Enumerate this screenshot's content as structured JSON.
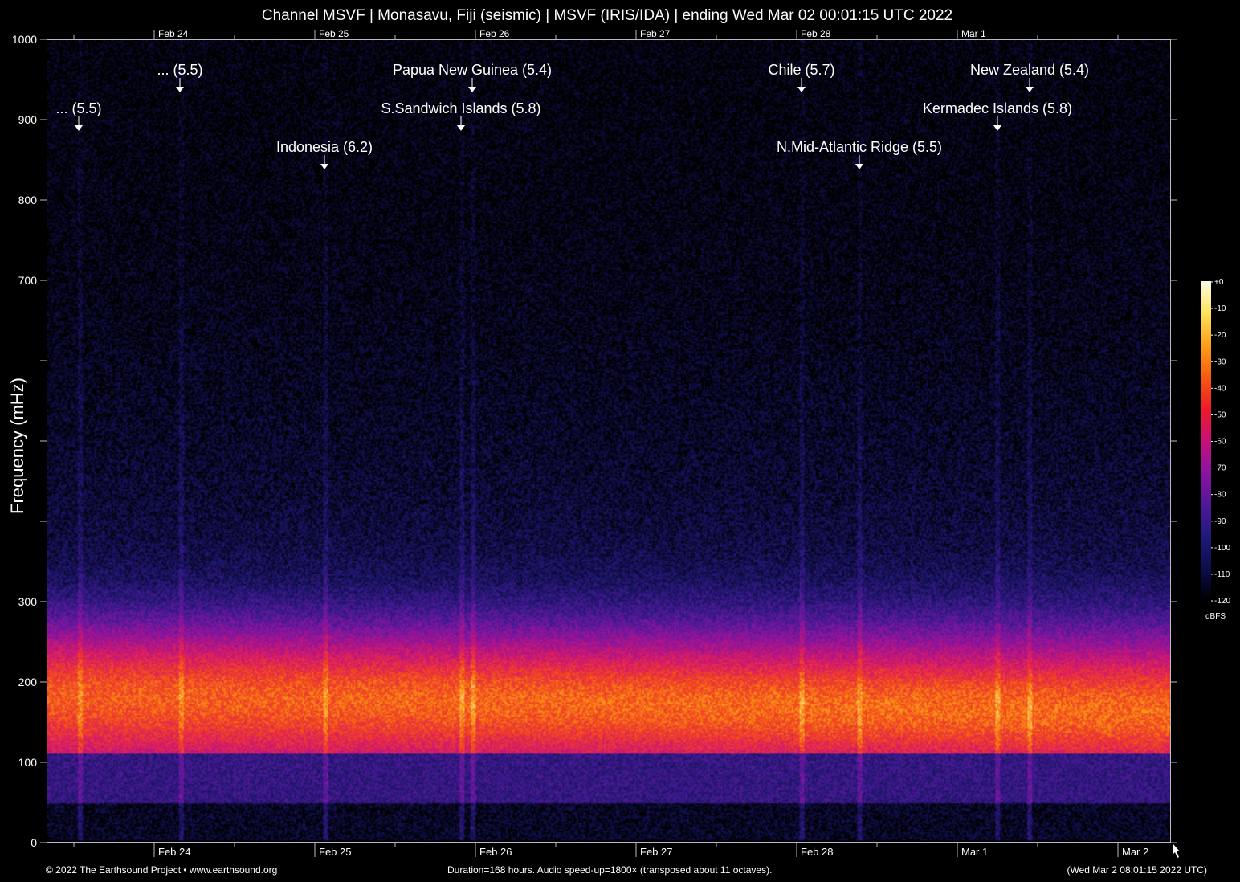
{
  "title": "Channel MSVF | Monasavu, Fiji (seismic) | MSVF (IRIS/IDA) | ending Wed Mar 02 00:01:15 UTC 2022",
  "ylabel": "Frequency (mHz)",
  "footer": {
    "left": "© 2022 The Earthsound Project • www.earthsound.org",
    "center": "Duration=168 hours. Audio speed-up=1800× (transposed about 11 octaves).",
    "right": "(Wed Mar  2 08:01:15 2022 UTC)"
  },
  "colors": {
    "background": "#000000",
    "annotation": "#ffffff",
    "axis": "#bbbbbb",
    "palette": [
      "#000000",
      "#14125a",
      "#3c1a8e",
      "#7a16a0",
      "#b01488",
      "#e0205a",
      "#f24a1a",
      "#fca018",
      "#fff3b0"
    ]
  },
  "chart_data": {
    "type": "heatmap",
    "title": "Channel MSVF | Monasavu, Fiji (seismic) | MSVF (IRIS/IDA) | ending Wed Mar 02 00:01:15 UTC 2022",
    "xlabel": "",
    "ylabel": "Frequency (mHz)",
    "ylim": [
      0,
      1000
    ],
    "y_ticks": [
      0,
      100,
      200,
      300,
      400,
      500,
      600,
      700,
      800,
      900,
      1000
    ],
    "y_tick_labels": [
      "0",
      "100",
      "200",
      "300",
      "",
      "",
      "",
      "700",
      "800",
      "900",
      "1000"
    ],
    "x_range_days": [
      0,
      7
    ],
    "x_ticks": [
      {
        "day": 0.67,
        "label": "Feb 24"
      },
      {
        "day": 1.67,
        "label": "Feb 25"
      },
      {
        "day": 2.67,
        "label": "Feb 26"
      },
      {
        "day": 3.67,
        "label": "Feb 27"
      },
      {
        "day": 4.67,
        "label": "Feb 28"
      },
      {
        "day": 5.67,
        "label": "Mar  1"
      },
      {
        "day": 6.67,
        "label": "Mar  2"
      }
    ],
    "x_ticks_top": [
      {
        "day": 0.67,
        "label": "Feb 24"
      },
      {
        "day": 1.67,
        "label": "Feb 25"
      },
      {
        "day": 2.67,
        "label": "Feb 26"
      },
      {
        "day": 3.67,
        "label": "Feb 27"
      },
      {
        "day": 4.67,
        "label": "Feb 28"
      },
      {
        "day": 5.67,
        "label": "Mar  1"
      }
    ],
    "events": [
      {
        "label": "... (5.5)",
        "day": 0.2,
        "row": 2
      },
      {
        "label": "... (5.5)",
        "day": 0.83,
        "row": 1
      },
      {
        "label": "Indonesia (6.2)",
        "day": 1.73,
        "row": 3
      },
      {
        "label": "S.Sandwich Islands (5.8)",
        "day": 2.58,
        "row": 2
      },
      {
        "label": "Papua New Guinea (5.4)",
        "day": 2.65,
        "row": 1
      },
      {
        "label": "Chile (5.7)",
        "day": 4.7,
        "row": 1
      },
      {
        "label": "N.Mid-Atlantic Ridge (5.5)",
        "day": 5.06,
        "row": 3
      },
      {
        "label": "Kermadec Islands (5.8)",
        "day": 5.92,
        "row": 2
      },
      {
        "label": "New Zealand (5.4)",
        "day": 6.12,
        "row": 1
      }
    ],
    "colorbar": {
      "range": [
        -120,
        0
      ],
      "ticks": [
        "+0",
        "-10",
        "-20",
        "-30",
        "-40",
        "-50",
        "-60",
        "-70",
        "-80",
        "-90",
        "-100",
        "-110",
        "-120"
      ],
      "unit": "dBFS"
    },
    "grid": false
  }
}
